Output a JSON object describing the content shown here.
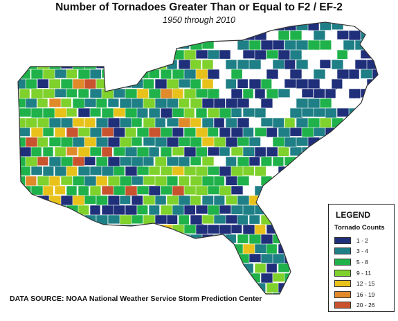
{
  "title": "Number of Tornadoes Greater Than or Equal to F2 / EF-2",
  "subtitle": "1950 through 2010",
  "legend": {
    "title": "LEGEND",
    "subtitle": "Tornado Counts",
    "items": [
      {
        "label": "1 - 2",
        "color": "#1f2f7a"
      },
      {
        "label": "3 - 4",
        "color": "#1f7f86"
      },
      {
        "label": "5 - 8",
        "color": "#1fb24a"
      },
      {
        "label": "9 - 11",
        "color": "#7fd12c"
      },
      {
        "label": "12 - 15",
        "color": "#e8c21a"
      },
      {
        "label": "16 - 19",
        "color": "#e08a2a"
      },
      {
        "label": "20 - 26",
        "color": "#c8532e"
      }
    ]
  },
  "source": "DATA SOURCE: NOAA National Weather Service Storm Prediction Center",
  "map": {
    "zero_color": "#ffffff",
    "border_color": "#ffffff",
    "outline_color": "#333333"
  }
}
